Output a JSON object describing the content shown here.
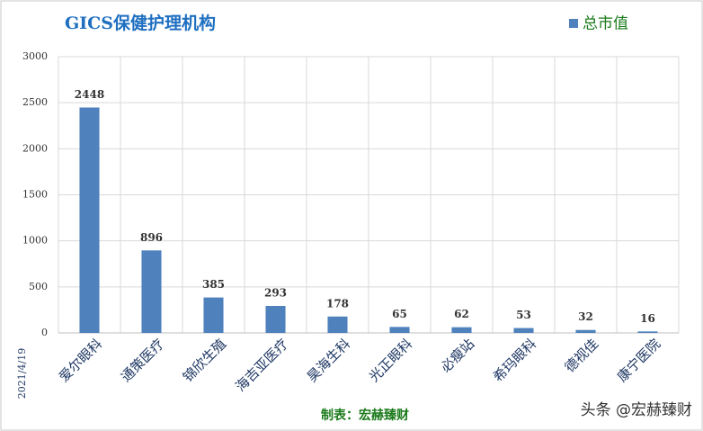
{
  "chart_data": {
    "type": "bar",
    "title": "GICS保健护理机构",
    "categories": [
      "爱尔眼科",
      "通策医疗",
      "锦欣生殖",
      "海吉亚医疗",
      "昊海生科",
      "光正眼科",
      "必瘦站",
      "希玛眼科",
      "德视佳",
      "康宁医院"
    ],
    "series": [
      {
        "name": "总市值",
        "color": "#4f81bd",
        "values": [
          2448,
          896,
          385,
          293,
          178,
          65,
          62,
          53,
          32,
          16
        ]
      }
    ],
    "ylim": [
      0,
      3000
    ],
    "yticks": [
      0,
      500,
      1000,
      1500,
      2000,
      2500,
      3000
    ],
    "grid": true,
    "date": "2021/4/19",
    "source": "制表：宏赫臻财",
    "watermark": "头条 @宏赫臻财"
  }
}
